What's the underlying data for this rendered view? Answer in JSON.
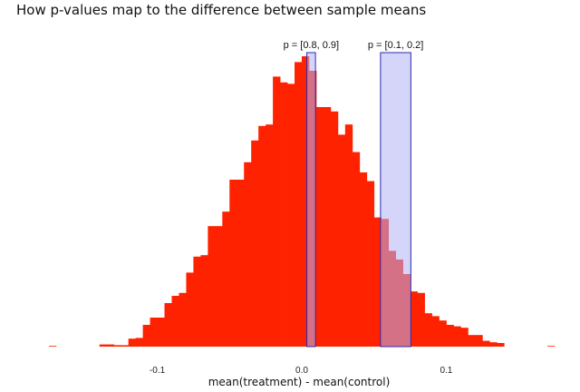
{
  "chart_data": {
    "type": "bar",
    "title": "How p-values map to the difference between sample means",
    "xlabel": "mean(treatment) - mean(control)",
    "ylabel": "",
    "xlim": [
      -0.18,
      0.175
    ],
    "ylim": [
      0,
      2000
    ],
    "grid": false,
    "colors": {
      "histogram": "#ff2200",
      "band_fill": "#b3b3f5",
      "band_stroke": "#2a2ab0"
    },
    "x_ticks": [
      {
        "value": -0.1,
        "label": "-0.1"
      },
      {
        "value": 0.0,
        "label": "0.0"
      },
      {
        "value": 0.1,
        "label": "0.1"
      }
    ],
    "bin_width": 0.005,
    "bins": [
      {
        "x0": -0.175,
        "count": 5
      },
      {
        "x0": -0.14,
        "count": 15
      },
      {
        "x0": -0.135,
        "count": 15
      },
      {
        "x0": -0.13,
        "count": 10
      },
      {
        "x0": -0.125,
        "count": 10
      },
      {
        "x0": -0.12,
        "count": 55
      },
      {
        "x0": -0.115,
        "count": 60
      },
      {
        "x0": -0.11,
        "count": 150
      },
      {
        "x0": -0.105,
        "count": 200
      },
      {
        "x0": -0.1,
        "count": 200
      },
      {
        "x0": -0.095,
        "count": 300
      },
      {
        "x0": -0.09,
        "count": 350
      },
      {
        "x0": -0.085,
        "count": 370
      },
      {
        "x0": -0.08,
        "count": 510
      },
      {
        "x0": -0.075,
        "count": 620
      },
      {
        "x0": -0.07,
        "count": 630
      },
      {
        "x0": -0.065,
        "count": 830
      },
      {
        "x0": -0.06,
        "count": 830
      },
      {
        "x0": -0.055,
        "count": 930
      },
      {
        "x0": -0.05,
        "count": 1150
      },
      {
        "x0": -0.045,
        "count": 1150
      },
      {
        "x0": -0.04,
        "count": 1270
      },
      {
        "x0": -0.035,
        "count": 1420
      },
      {
        "x0": -0.03,
        "count": 1520
      },
      {
        "x0": -0.025,
        "count": 1530
      },
      {
        "x0": -0.02,
        "count": 1860
      },
      {
        "x0": -0.015,
        "count": 1820
      },
      {
        "x0": -0.01,
        "count": 1810
      },
      {
        "x0": -0.005,
        "count": 1960
      },
      {
        "x0": 0.0,
        "count": 2000
      },
      {
        "x0": 0.005,
        "count": 1900
      },
      {
        "x0": 0.01,
        "count": 1650
      },
      {
        "x0": 0.015,
        "count": 1650
      },
      {
        "x0": 0.02,
        "count": 1620
      },
      {
        "x0": 0.025,
        "count": 1460
      },
      {
        "x0": 0.03,
        "count": 1530
      },
      {
        "x0": 0.035,
        "count": 1340
      },
      {
        "x0": 0.04,
        "count": 1200
      },
      {
        "x0": 0.045,
        "count": 1140
      },
      {
        "x0": 0.05,
        "count": 890
      },
      {
        "x0": 0.055,
        "count": 880
      },
      {
        "x0": 0.06,
        "count": 660
      },
      {
        "x0": 0.065,
        "count": 600
      },
      {
        "x0": 0.07,
        "count": 500
      },
      {
        "x0": 0.075,
        "count": 380
      },
      {
        "x0": 0.08,
        "count": 370
      },
      {
        "x0": 0.085,
        "count": 230
      },
      {
        "x0": 0.09,
        "count": 210
      },
      {
        "x0": 0.095,
        "count": 180
      },
      {
        "x0": 0.1,
        "count": 150
      },
      {
        "x0": 0.105,
        "count": 140
      },
      {
        "x0": 0.11,
        "count": 130
      },
      {
        "x0": 0.115,
        "count": 80
      },
      {
        "x0": 0.12,
        "count": 80
      },
      {
        "x0": 0.125,
        "count": 40
      },
      {
        "x0": 0.13,
        "count": 30
      },
      {
        "x0": 0.135,
        "count": 25
      },
      {
        "x0": 0.17,
        "count": 5
      }
    ],
    "highlight_bands": [
      {
        "label": "p = [0.8, 0.9]",
        "x_range": [
          0.0035,
          0.0095
        ]
      },
      {
        "label": "p = [0.1, 0.2]",
        "x_range": [
          0.0545,
          0.0755
        ]
      }
    ]
  }
}
